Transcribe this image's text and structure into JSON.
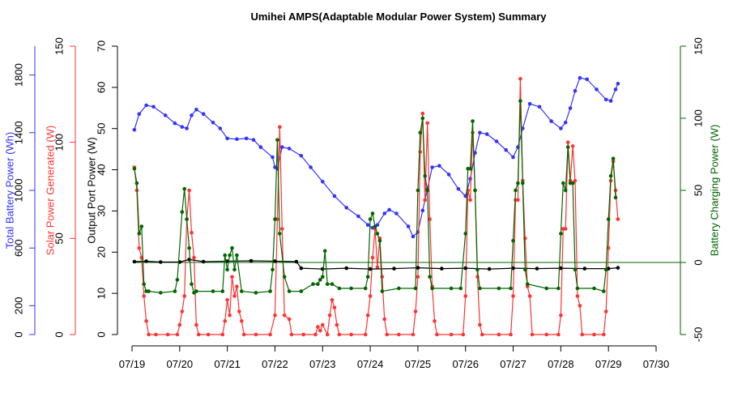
{
  "chart_data": {
    "type": "line",
    "title": "Umihei AMPS(Adaptable Modular Power System) Summary",
    "x_tick_labels": [
      "07/19",
      "07/20",
      "07/21",
      "07/22",
      "07/23",
      "07/24",
      "07/25",
      "07/26",
      "07/27",
      "07/28",
      "07/29",
      "07/30"
    ],
    "x_unit": "days since 07/19 00:00",
    "xlim": [
      0,
      11
    ],
    "axes": {
      "battery": {
        "label": "Total Battery Power (Wh)",
        "color": "#3333ff",
        "ylim": [
          0,
          2000
        ],
        "ticks": [
          0,
          200,
          600,
          1000,
          1400,
          1800
        ]
      },
      "solar": {
        "label": "Solar Power Generated (W)",
        "color": "#ff3333",
        "ylim": [
          0,
          150
        ],
        "ticks": [
          0,
          50,
          100,
          150
        ]
      },
      "output": {
        "label": "Output Port Power (W)",
        "color": "#000000",
        "ylim": [
          0,
          70
        ],
        "ticks": [
          0,
          10,
          20,
          30,
          40,
          50,
          60,
          70
        ]
      },
      "charging": {
        "label": "Battery Charging Power (W)",
        "color": "#006600",
        "ylim": [
          -50,
          150
        ],
        "ticks": [
          -50,
          0,
          50,
          100,
          150
        ]
      }
    },
    "reference_line": {
      "axis": "charging",
      "value": 0
    },
    "series": [
      {
        "name": "Total Battery Power (Wh)",
        "axis": "battery",
        "color": "#3333ff",
        "points": [
          [
            0.05,
            1420
          ],
          [
            0.15,
            1530
          ],
          [
            0.3,
            1590
          ],
          [
            0.45,
            1580
          ],
          [
            0.7,
            1520
          ],
          [
            0.9,
            1465
          ],
          [
            1.05,
            1440
          ],
          [
            1.15,
            1430
          ],
          [
            1.25,
            1520
          ],
          [
            1.35,
            1560
          ],
          [
            1.5,
            1530
          ],
          [
            1.7,
            1470
          ],
          [
            1.85,
            1430
          ],
          [
            2.0,
            1360
          ],
          [
            2.2,
            1355
          ],
          [
            2.4,
            1360
          ],
          [
            2.55,
            1350
          ],
          [
            2.7,
            1300
          ],
          [
            2.95,
            1230
          ],
          [
            3.0,
            1160
          ],
          [
            3.05,
            1150
          ],
          [
            3.15,
            1300
          ],
          [
            3.3,
            1290
          ],
          [
            3.55,
            1240
          ],
          [
            3.75,
            1160
          ],
          [
            4.0,
            1060
          ],
          [
            4.25,
            960
          ],
          [
            4.5,
            880
          ],
          [
            4.75,
            820
          ],
          [
            4.95,
            760
          ],
          [
            5.05,
            740
          ],
          [
            5.15,
            760
          ],
          [
            5.3,
            840
          ],
          [
            5.4,
            865
          ],
          [
            5.55,
            840
          ],
          [
            5.8,
            750
          ],
          [
            5.9,
            680
          ],
          [
            6.0,
            710
          ],
          [
            6.1,
            860
          ],
          [
            6.2,
            1010
          ],
          [
            6.3,
            1160
          ],
          [
            6.45,
            1170
          ],
          [
            6.65,
            1110
          ],
          [
            6.85,
            1010
          ],
          [
            7.0,
            960
          ],
          [
            7.1,
            1080
          ],
          [
            7.2,
            1260
          ],
          [
            7.3,
            1400
          ],
          [
            7.45,
            1390
          ],
          [
            7.65,
            1340
          ],
          [
            7.85,
            1280
          ],
          [
            8.0,
            1230
          ],
          [
            8.1,
            1300
          ],
          [
            8.2,
            1430
          ],
          [
            8.35,
            1600
          ],
          [
            8.55,
            1580
          ],
          [
            8.8,
            1480
          ],
          [
            9.0,
            1430
          ],
          [
            9.1,
            1470
          ],
          [
            9.2,
            1570
          ],
          [
            9.3,
            1690
          ],
          [
            9.4,
            1780
          ],
          [
            9.55,
            1770
          ],
          [
            9.75,
            1700
          ],
          [
            9.95,
            1630
          ],
          [
            10.05,
            1620
          ],
          [
            10.15,
            1700
          ],
          [
            10.2,
            1740
          ]
        ]
      },
      {
        "name": "Solar Power Generated (W)",
        "axis": "solar",
        "color": "#ff3333",
        "points": [
          [
            0.05,
            87
          ],
          [
            0.1,
            75
          ],
          [
            0.15,
            45
          ],
          [
            0.2,
            40
          ],
          [
            0.25,
            20
          ],
          [
            0.3,
            7
          ],
          [
            0.35,
            0
          ],
          [
            0.5,
            0
          ],
          [
            0.75,
            0
          ],
          [
            0.95,
            0
          ],
          [
            1.0,
            5
          ],
          [
            1.05,
            12
          ],
          [
            1.1,
            20
          ],
          [
            1.15,
            60
          ],
          [
            1.2,
            75
          ],
          [
            1.25,
            53
          ],
          [
            1.3,
            40
          ],
          [
            1.35,
            5
          ],
          [
            1.4,
            0
          ],
          [
            1.6,
            0
          ],
          [
            1.9,
            0
          ],
          [
            1.95,
            7
          ],
          [
            2.0,
            18
          ],
          [
            2.05,
            10
          ],
          [
            2.1,
            30
          ],
          [
            2.15,
            20
          ],
          [
            2.2,
            25
          ],
          [
            2.25,
            12
          ],
          [
            2.3,
            7
          ],
          [
            2.35,
            0
          ],
          [
            2.6,
            0
          ],
          [
            2.9,
            0
          ],
          [
            3.0,
            10
          ],
          [
            3.05,
            60
          ],
          [
            3.1,
            108
          ],
          [
            3.15,
            55
          ],
          [
            3.2,
            10
          ],
          [
            3.3,
            8
          ],
          [
            3.35,
            0
          ],
          [
            3.6,
            0
          ],
          [
            3.85,
            0
          ],
          [
            3.9,
            4
          ],
          [
            3.95,
            2
          ],
          [
            4.0,
            5
          ],
          [
            4.1,
            0
          ],
          [
            4.15,
            10
          ],
          [
            4.2,
            18
          ],
          [
            4.25,
            14
          ],
          [
            4.3,
            5
          ],
          [
            4.35,
            0
          ],
          [
            4.6,
            0
          ],
          [
            4.9,
            0
          ],
          [
            4.95,
            10
          ],
          [
            5.0,
            20
          ],
          [
            5.05,
            40
          ],
          [
            5.1,
            55
          ],
          [
            5.15,
            35
          ],
          [
            5.2,
            50
          ],
          [
            5.25,
            30
          ],
          [
            5.3,
            8
          ],
          [
            5.35,
            0
          ],
          [
            5.6,
            0
          ],
          [
            5.9,
            0
          ],
          [
            5.95,
            12
          ],
          [
            6.0,
            30
          ],
          [
            6.05,
            95
          ],
          [
            6.1,
            115
          ],
          [
            6.15,
            70
          ],
          [
            6.2,
            110
          ],
          [
            6.25,
            60
          ],
          [
            6.3,
            25
          ],
          [
            6.35,
            7
          ],
          [
            6.4,
            0
          ],
          [
            6.7,
            0
          ],
          [
            6.95,
            0
          ],
          [
            7.0,
            20
          ],
          [
            7.05,
            75
          ],
          [
            7.1,
            70
          ],
          [
            7.15,
            105
          ],
          [
            7.2,
            75
          ],
          [
            7.25,
            30
          ],
          [
            7.3,
            5
          ],
          [
            7.35,
            0
          ],
          [
            7.7,
            0
          ],
          [
            7.95,
            0
          ],
          [
            8.0,
            20
          ],
          [
            8.05,
            70
          ],
          [
            8.1,
            70
          ],
          [
            8.15,
            133
          ],
          [
            8.2,
            80
          ],
          [
            8.25,
            50
          ],
          [
            8.3,
            25
          ],
          [
            8.35,
            20
          ],
          [
            8.4,
            0
          ],
          [
            8.7,
            0
          ],
          [
            8.95,
            0
          ],
          [
            9.0,
            10
          ],
          [
            9.05,
            55
          ],
          [
            9.1,
            55
          ],
          [
            9.15,
            100
          ],
          [
            9.2,
            80
          ],
          [
            9.25,
            98
          ],
          [
            9.3,
            80
          ],
          [
            9.35,
            20
          ],
          [
            9.4,
            15
          ],
          [
            9.45,
            0
          ],
          [
            9.7,
            0
          ],
          [
            9.9,
            0
          ],
          [
            9.95,
            12
          ],
          [
            10.0,
            45
          ],
          [
            10.05,
            80
          ],
          [
            10.1,
            90
          ],
          [
            10.15,
            75
          ],
          [
            10.2,
            60
          ]
        ]
      },
      {
        "name": "Output Port Power (W)",
        "axis": "output",
        "color": "#000000",
        "points": [
          [
            0.05,
            17.7
          ],
          [
            0.3,
            17.8
          ],
          [
            0.6,
            17.6
          ],
          [
            1.0,
            17.6
          ],
          [
            1.2,
            18.2
          ],
          [
            1.5,
            17.7
          ],
          [
            2.0,
            17.8
          ],
          [
            2.5,
            17.9
          ],
          [
            3.0,
            17.8
          ],
          [
            3.45,
            17.7
          ],
          [
            3.55,
            16.1
          ],
          [
            4.0,
            15.9
          ],
          [
            4.5,
            16.1
          ],
          [
            5.0,
            15.9
          ],
          [
            5.5,
            16.0
          ],
          [
            6.0,
            16.2
          ],
          [
            6.5,
            16.0
          ],
          [
            7.0,
            16.1
          ],
          [
            7.5,
            15.9
          ],
          [
            8.0,
            16.1
          ],
          [
            8.5,
            16.0
          ],
          [
            9.0,
            16.1
          ],
          [
            9.5,
            16.0
          ],
          [
            10.0,
            16.0
          ],
          [
            10.2,
            16.2
          ]
        ]
      },
      {
        "name": "Battery Charging Power (W)",
        "axis": "charging",
        "color": "#006600",
        "points": [
          [
            0.05,
            65
          ],
          [
            0.1,
            55
          ],
          [
            0.15,
            20
          ],
          [
            0.2,
            25
          ],
          [
            0.25,
            -15
          ],
          [
            0.3,
            -20
          ],
          [
            0.35,
            -20
          ],
          [
            0.6,
            -21
          ],
          [
            0.9,
            -20
          ],
          [
            0.95,
            -12
          ],
          [
            1.05,
            35
          ],
          [
            1.1,
            51
          ],
          [
            1.15,
            30
          ],
          [
            1.2,
            10
          ],
          [
            1.25,
            -15
          ],
          [
            1.3,
            -21
          ],
          [
            1.35,
            -20
          ],
          [
            1.7,
            -20
          ],
          [
            1.9,
            -20
          ],
          [
            1.95,
            5
          ],
          [
            2.0,
            -5
          ],
          [
            2.05,
            5
          ],
          [
            2.1,
            10
          ],
          [
            2.15,
            -5
          ],
          [
            2.2,
            5
          ],
          [
            2.3,
            -20
          ],
          [
            2.6,
            -21
          ],
          [
            2.9,
            -20
          ],
          [
            2.95,
            -5
          ],
          [
            3.0,
            30
          ],
          [
            3.05,
            85
          ],
          [
            3.1,
            20
          ],
          [
            3.2,
            -10
          ],
          [
            3.3,
            -20
          ],
          [
            3.55,
            -20
          ],
          [
            3.8,
            -15
          ],
          [
            3.9,
            -15
          ],
          [
            3.95,
            -12
          ],
          [
            4.0,
            -10
          ],
          [
            4.05,
            8
          ],
          [
            4.1,
            -15
          ],
          [
            4.2,
            -15
          ],
          [
            4.35,
            -18
          ],
          [
            4.6,
            -18
          ],
          [
            4.9,
            -18
          ],
          [
            4.95,
            -10
          ],
          [
            5.0,
            30
          ],
          [
            5.05,
            34
          ],
          [
            5.1,
            25
          ],
          [
            5.15,
            20
          ],
          [
            5.2,
            15
          ],
          [
            5.25,
            -20
          ],
          [
            5.6,
            -18
          ],
          [
            5.95,
            -18
          ],
          [
            6.0,
            50
          ],
          [
            6.05,
            90
          ],
          [
            6.1,
            100
          ],
          [
            6.15,
            60
          ],
          [
            6.2,
            50
          ],
          [
            6.25,
            -10
          ],
          [
            6.3,
            -18
          ],
          [
            6.7,
            -18
          ],
          [
            6.9,
            -18
          ],
          [
            7.0,
            20
          ],
          [
            7.05,
            65
          ],
          [
            7.1,
            65
          ],
          [
            7.15,
            98
          ],
          [
            7.2,
            50
          ],
          [
            7.25,
            -5
          ],
          [
            7.3,
            -18
          ],
          [
            7.7,
            -18
          ],
          [
            7.95,
            -18
          ],
          [
            8.0,
            15
          ],
          [
            8.05,
            50
          ],
          [
            8.1,
            55
          ],
          [
            8.15,
            112
          ],
          [
            8.2,
            55
          ],
          [
            8.25,
            -5
          ],
          [
            8.3,
            -15
          ],
          [
            8.7,
            -18
          ],
          [
            8.95,
            -18
          ],
          [
            9.0,
            20
          ],
          [
            9.05,
            55
          ],
          [
            9.1,
            50
          ],
          [
            9.15,
            80
          ],
          [
            9.2,
            55
          ],
          [
            9.25,
            55
          ],
          [
            9.3,
            -5
          ],
          [
            9.35,
            -18
          ],
          [
            9.7,
            -18
          ],
          [
            9.9,
            -20
          ],
          [
            9.95,
            -5
          ],
          [
            10.0,
            30
          ],
          [
            10.05,
            60
          ],
          [
            10.1,
            72
          ],
          [
            10.15,
            45
          ]
        ]
      }
    ]
  }
}
